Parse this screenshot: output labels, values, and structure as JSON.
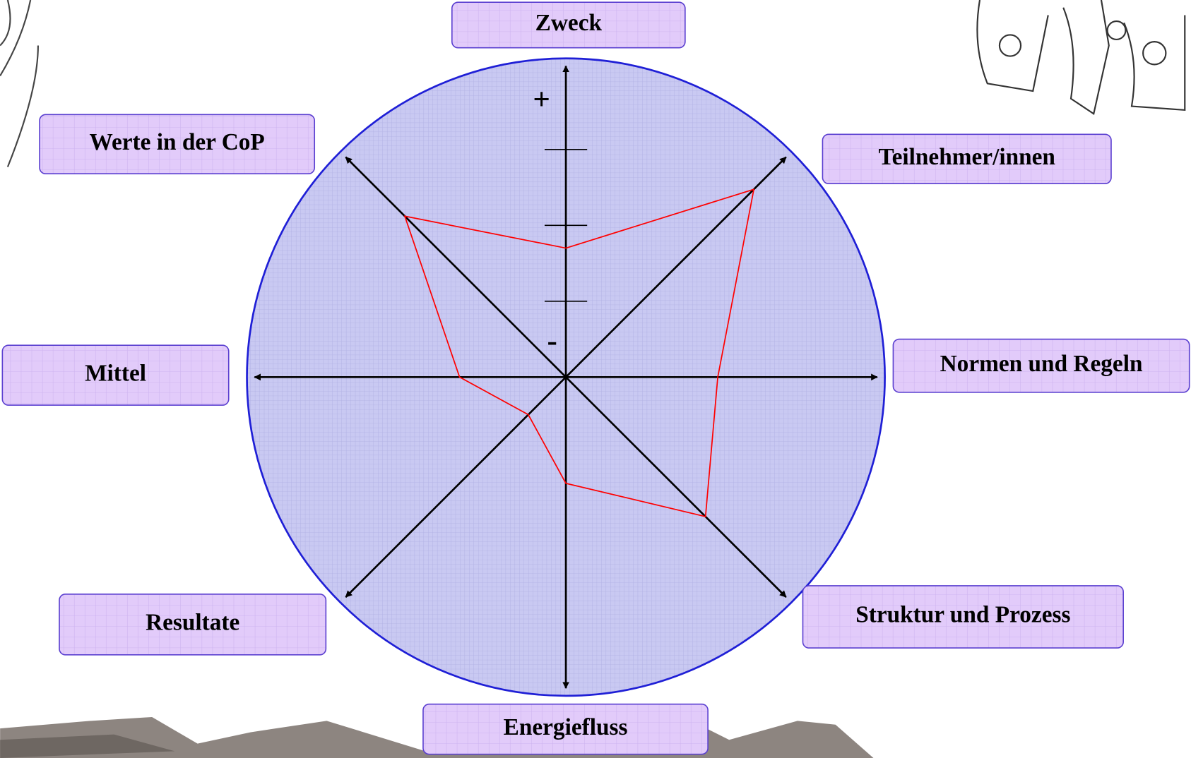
{
  "chart_data": {
    "type": "radar",
    "categories": [
      "Zweck",
      "Teilnehmer/innen",
      "Normen und Regeln",
      "Struktur und Prozess",
      "Energiefluss",
      "Resultate",
      "Mittel",
      "Werte in der CoP"
    ],
    "series": [
      {
        "color": "#ff0000",
        "values": [
          1.7,
          3.5,
          2.0,
          2.6,
          1.4,
          0.7,
          1.4,
          3.0
        ]
      }
    ],
    "rlim": [
      0,
      4.2
    ],
    "rticks": [
      1,
      2,
      3
    ],
    "axis_high_label": "+",
    "axis_low_label": "-"
  }
}
